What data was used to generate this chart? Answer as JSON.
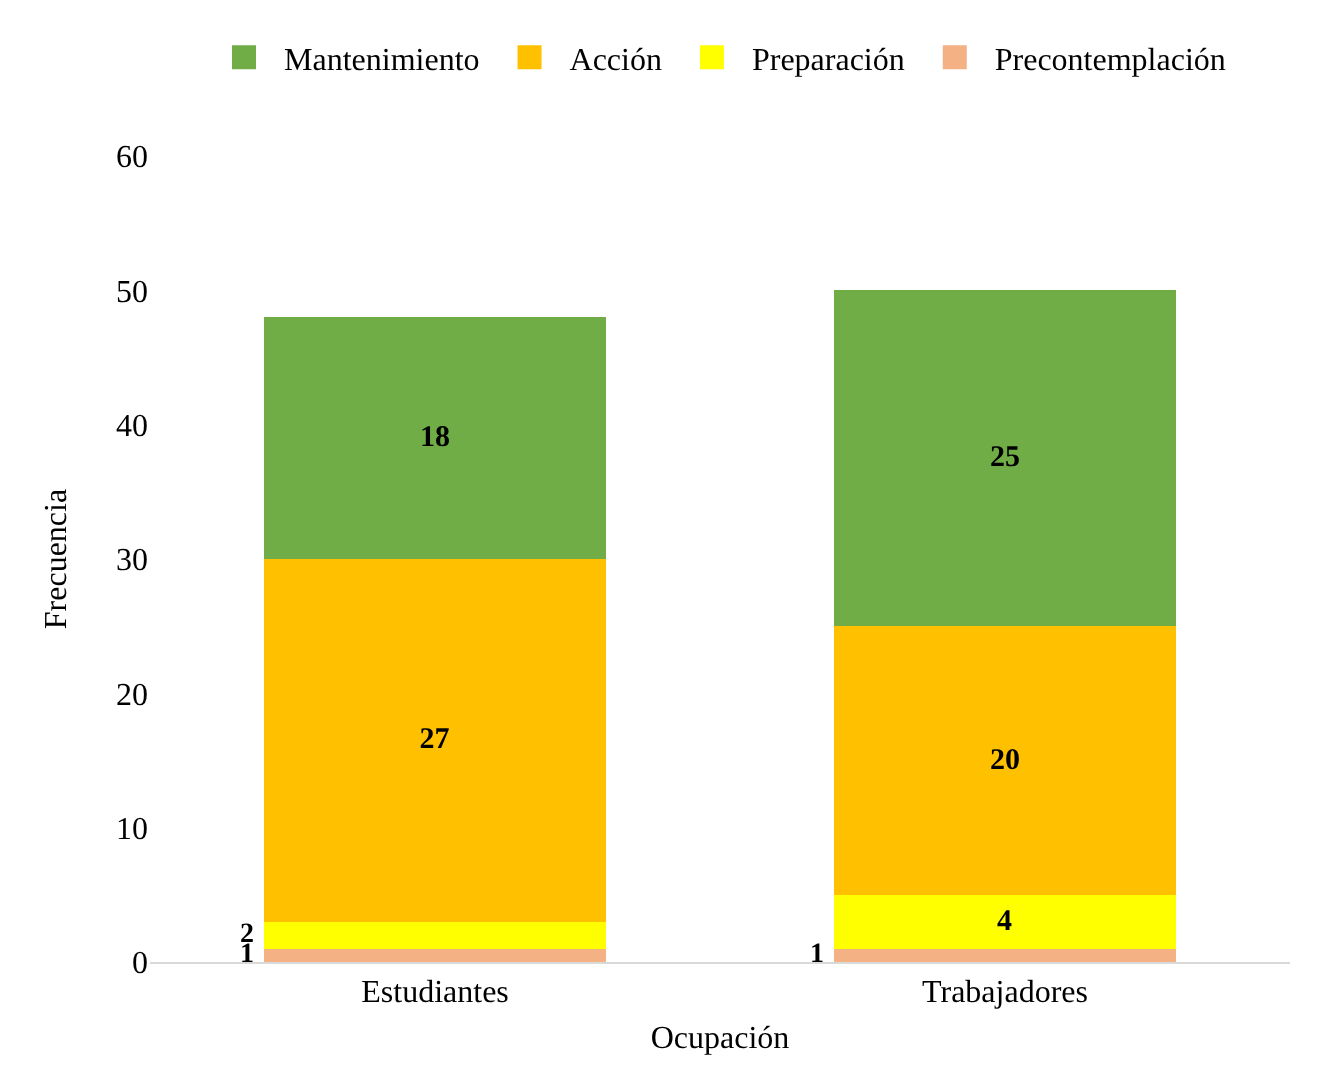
{
  "chart_data": {
    "type": "bar",
    "stacked": true,
    "xlabel": "Ocupación",
    "ylabel": "Frecuencia",
    "categories": [
      "Estudiantes",
      "Trabajadores"
    ],
    "series": [
      {
        "name": "Precontemplación",
        "color": "#f4b183",
        "values": [
          1,
          1
        ]
      },
      {
        "name": "Preparación",
        "color": "#ffff00",
        "values": [
          2,
          4
        ]
      },
      {
        "name": "Acción",
        "color": "#ffc000",
        "values": [
          27,
          20
        ]
      },
      {
        "name": "Mantenimiento",
        "color": "#70ad47",
        "values": [
          18,
          25
        ]
      }
    ],
    "ylim": [
      0,
      60
    ],
    "yticks": [
      0,
      10,
      20,
      30,
      40,
      50,
      60
    ],
    "grid": false,
    "legend": "top",
    "data_labels": true
  }
}
